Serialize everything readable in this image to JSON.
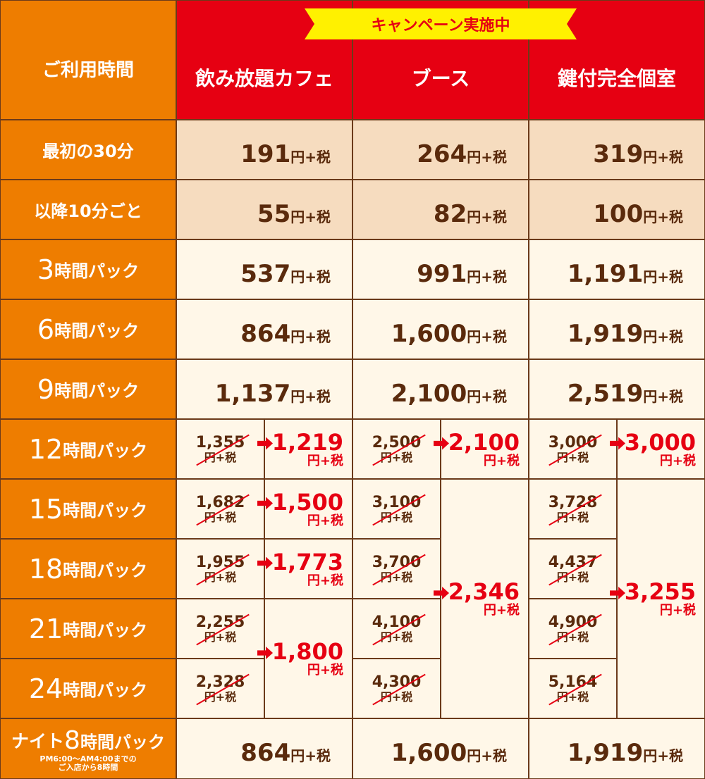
{
  "header": {
    "time_label": "ご利用時間",
    "campaign": "キャンペーン実施中",
    "columns": [
      "飲み放題カフェ",
      "ブース",
      "鍵付完全個室"
    ]
  },
  "unit": "円+税",
  "rows": [
    {
      "label": {
        "text": "最初の30分"
      },
      "prices": [
        "191",
        "264",
        "319"
      ]
    },
    {
      "label": {
        "text": "以降10分ごと"
      },
      "prices": [
        "55",
        "82",
        "100"
      ]
    },
    {
      "label": {
        "num": "3",
        "text": "時間パック"
      },
      "prices": [
        "537",
        "991",
        "1,191"
      ]
    },
    {
      "label": {
        "num": "6",
        "text": "時間パック"
      },
      "prices": [
        "864",
        "1,600",
        "1,919"
      ]
    },
    {
      "label": {
        "num": "9",
        "text": "時間パック"
      },
      "prices": [
        "1,137",
        "2,100",
        "2,519"
      ]
    }
  ],
  "campaign": {
    "rows": [
      {
        "label": {
          "num": "12",
          "text": "時間パック"
        },
        "regular": [
          "1,355",
          "2,500",
          "3,000"
        ]
      },
      {
        "label": {
          "num": "15",
          "text": "時間パック"
        },
        "regular": [
          "1,682",
          "3,100",
          "3,728"
        ]
      },
      {
        "label": {
          "num": "18",
          "text": "時間パック"
        },
        "regular": [
          "1,955",
          "3,700",
          "4,437"
        ]
      },
      {
        "label": {
          "num": "21",
          "text": "時間パック"
        },
        "regular": [
          "2,255",
          "4,100",
          "4,900"
        ]
      },
      {
        "label": {
          "num": "24",
          "text": "時間パック"
        },
        "regular": [
          "2,328",
          "4,300",
          "5,164"
        ]
      }
    ],
    "new_prices": [
      [
        "1,219",
        "1,500",
        "1,773",
        "1,800"
      ],
      [
        "2,100",
        "2,346"
      ],
      [
        "3,000",
        "3,255"
      ]
    ]
  },
  "night": {
    "label": {
      "prefix": "ナイト",
      "num": "8",
      "text": "時間パック"
    },
    "note": [
      "PM6:00〜AM4:00までの",
      "ご入店から8時間"
    ],
    "prices": [
      "864",
      "1,600",
      "1,919"
    ]
  }
}
